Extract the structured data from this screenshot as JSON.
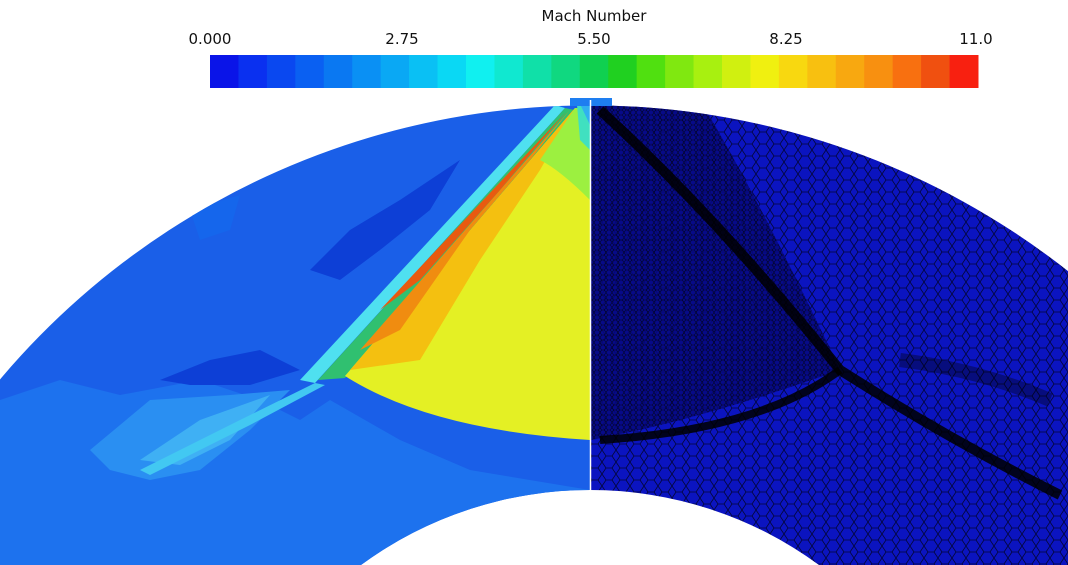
{
  "colorbar": {
    "title": "Mach Number",
    "tick_labels": [
      "0.000",
      "2.75",
      "5.50",
      "8.25",
      "11.0"
    ]
  }
}
